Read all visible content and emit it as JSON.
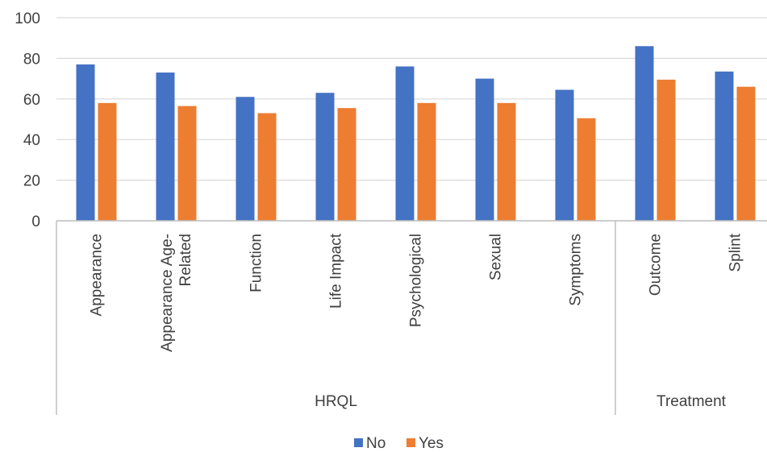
{
  "chart_data": {
    "type": "bar",
    "categories": [
      "Appearance",
      "Appearance Age-Related",
      "Function",
      "Life Impact",
      "Psychological",
      "Sexual",
      "Symptoms",
      "Outcome",
      "Splint"
    ],
    "category_lines": [
      [
        "Appearance"
      ],
      [
        "Appearance Age-",
        "Related"
      ],
      [
        "Function"
      ],
      [
        "Life Impact"
      ],
      [
        "Psychological"
      ],
      [
        "Sexual"
      ],
      [
        "Symptoms"
      ],
      [
        "Outcome"
      ],
      [
        "Splint"
      ]
    ],
    "groups": [
      {
        "label": "HRQL",
        "categories": [
          "Appearance",
          "Appearance Age-Related",
          "Function",
          "Life Impact",
          "Psychological",
          "Sexual",
          "Symptoms"
        ]
      },
      {
        "label": "Treatment",
        "categories": [
          "Outcome",
          "Splint"
        ]
      }
    ],
    "series": [
      {
        "name": "No",
        "color": "#4472C4",
        "values": [
          77,
          73,
          61,
          63,
          76,
          70,
          64.5,
          86,
          73.5
        ]
      },
      {
        "name": "Yes",
        "color": "#ED7D31",
        "values": [
          58,
          56.5,
          53,
          55.5,
          58,
          58,
          50.5,
          69.5,
          66
        ]
      }
    ],
    "ylim": [
      0,
      100
    ],
    "yticks": [
      "0",
      "20",
      "40",
      "60",
      "80",
      "100"
    ],
    "grid": true,
    "legend_position": "bottom"
  }
}
